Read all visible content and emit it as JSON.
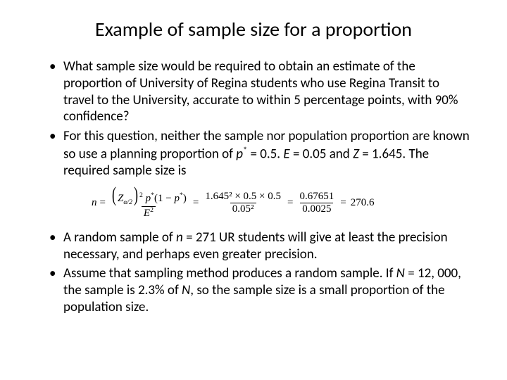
{
  "title": "Example of sample size for a proportion",
  "bullets": {
    "b1": "What sample size would be required to obtain an estimate of the proportion of University of Regina students who use Regina Transit to travel to the University, accurate to within 5 percentage points, with 90% confidence?",
    "b2_a": "For this question, neither the sample nor population proportion are known so use a planning proportion of ",
    "b2_pstar": "p",
    "b2_b": " = 0.5.  ",
    "b2_E": "E",
    "b2_c": " = 0.05 and ",
    "b2_Z": "Z",
    "b2_d": " = 1.645.  The required sample size is",
    "b3_a": "A random sample of ",
    "b3_n": "n",
    "b3_b": " = 271 UR students will give at least the precision necessary, and perhaps even greater precision.",
    "b4_a": "Assume that sampling method produces a random sample.  If ",
    "b4_N": "N",
    "b4_b": " = 12, 000, the sample is 2.3% of ",
    "b4_N2": "N",
    "b4_c": ", so the sample size is a small proportion of the population size."
  },
  "formula": {
    "n": "n",
    "eq": "=",
    "Z": "Z",
    "alpha2": "α/2",
    "sq": "2",
    "pstar": "p",
    "star": "*",
    "one_minus": "(1 − ",
    "close": ")",
    "E": "E",
    "mid_num": "1.645² × 0.5 × 0.5",
    "mid_den": "0.05²",
    "r_num": "0.67651",
    "r_den": "0.0025",
    "result": "270.6"
  },
  "colors": {
    "text": "#000000",
    "bg": "#ffffff"
  }
}
